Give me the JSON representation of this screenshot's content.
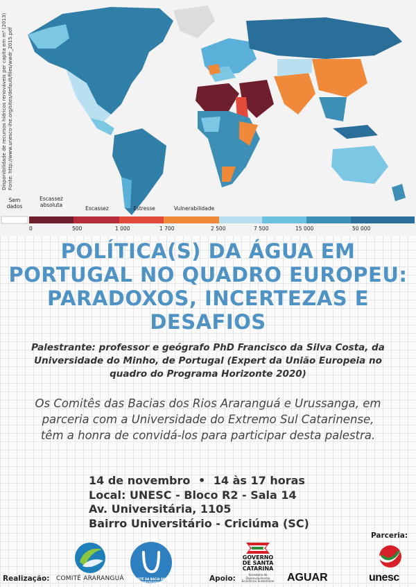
{
  "map": {
    "source_lines": [
      "Disponibilidade de recursos hídricos renováveis per capita em m³ (2013)",
      "Fonte: http://www.unesco-ihe.org/sites/default/files/wwdr_2015.pdf"
    ],
    "legend": {
      "categories": {
        "no_data": "Sem dados",
        "absolute": "Escassez absoluta",
        "scarcity": "Escassez",
        "stress": "Estresse",
        "vulnerability": "Vulnerabilidade"
      },
      "ticks": [
        "0",
        "500",
        "1 000",
        "1 700",
        "2 500",
        "7 500",
        "15 000",
        "50 000"
      ],
      "colors": [
        "#ffffff",
        "#6e1e2c",
        "#b52c3a",
        "#e24a3c",
        "#f08a3a",
        "#b8dff0",
        "#6ec0e0",
        "#3e8fb5",
        "#2a6f9a"
      ]
    }
  },
  "title": "POLÍTICA(S) DA ÁGUA EM PORTUGAL NO QUADRO EUROPEU: PARADOXOS, INCERTEZAS E DESAFIOS",
  "speaker": "Palestrante: professor e geógrafo PhD Francisco da Silva Costa, da Universidade do Minho, de Portugal (Expert da União Europeia no quadro do Programa Horizonte 2020)",
  "intro": "Os Comitês das Bacias dos Rios Araranguá e Urussanga, em parceria com a Universidade do Extremo Sul Catarinense, têm a honra de convidá-los para participar desta palestra.",
  "details": {
    "date": "14 de novembro",
    "separator": "•",
    "time": "14 às 17 horas",
    "local": "Local: UNESC - Bloco R2 - Sala 14",
    "address": "Av. Universitária, 1105",
    "district": "Bairro Universitário - Criciúma (SC)"
  },
  "footer": {
    "realizacao_label": "Realização:",
    "comite_ararangua": "COMITÊ ARARANGUÁ",
    "comite_urussanga": "COMITÊ DA BACIA DO RIO URUSSANGA",
    "apoio_label": "Apoio:",
    "governo": "GOVERNO DE SANTA CATARINA",
    "governo_sub": "Secretaria de Desenvolvimento Econômico Sustentável",
    "aguar": "AGUAR",
    "parceria_label": "Parceria:",
    "unesc": "unesc"
  }
}
